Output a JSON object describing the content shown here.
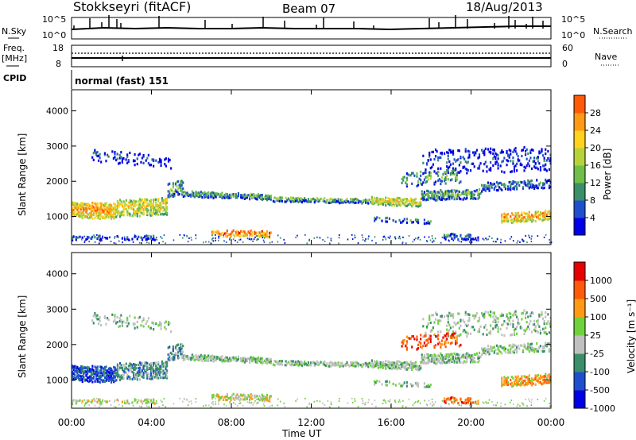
{
  "header": {
    "station": "Stokkseyri (fitACF)",
    "beam": "Beam 07",
    "date": "18/Aug/2013"
  },
  "noise_panel": {
    "left_label": "N.Sky",
    "right_label": "N.Search",
    "ticks": [
      "10^5",
      "10^0"
    ]
  },
  "freq_panel": {
    "left_label_1": "Freq.",
    "left_label_2": "[MHz]",
    "left_ticks": [
      "18",
      "8"
    ],
    "right_ticks": [
      "60",
      "0"
    ],
    "right_label": "Nave"
  },
  "cpid": {
    "label": "CPID",
    "value": "normal (fast) 151"
  },
  "colors": {
    "power": [
      "#0000e6",
      "#1f4fcc",
      "#3a8f6a",
      "#6fbf4a",
      "#b8d23c",
      "#ffd21e",
      "#ff9a14",
      "#ff5a0a",
      "#e60000"
    ],
    "velocity": [
      "#e60000",
      "#ff5a0a",
      "#ff9a14",
      "#6fd23c",
      "#c0c0c0",
      "#3a8f6a",
      "#1f4fcc",
      "#0000e6"
    ]
  },
  "chart_data": [
    {
      "type": "heatmap",
      "panel": "power",
      "ylabel": "Slant Range [km]",
      "yticks": [
        "1000",
        "2000",
        "3000",
        "4000"
      ],
      "ylim": [
        200,
        4600
      ],
      "colorbar_label": "Power [dB]",
      "colorbar_ticks": [
        "4",
        "8",
        "12",
        "16",
        "20",
        "24",
        "28"
      ],
      "colorbar_range": [
        0,
        32
      ]
    },
    {
      "type": "heatmap",
      "panel": "velocity",
      "ylabel": "Slant Range [km]",
      "yticks": [
        "1000",
        "2000",
        "3000",
        "4000"
      ],
      "ylim": [
        200,
        4600
      ],
      "colorbar_label": "Velocity [m s⁻¹]",
      "colorbar_ticks": [
        "1000",
        "500",
        "100",
        "25",
        "-25",
        "-100",
        "-500",
        "-1000"
      ]
    }
  ],
  "x_axis": {
    "label": "Time UT",
    "ticks": [
      "00:00",
      "04:00",
      "08:00",
      "12:00",
      "16:00",
      "20:00",
      "00:00"
    ]
  }
}
